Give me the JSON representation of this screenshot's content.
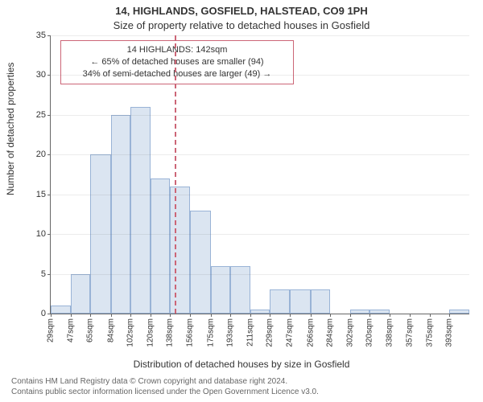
{
  "title_line1": "14, HIGHLANDS, GOSFIELD, HALSTEAD, CO9 1PH",
  "title_line2": "Size of property relative to detached houses in Gosfield",
  "ylabel": "Number of detached properties",
  "xlabel": "Distribution of detached houses by size in Gosfield",
  "chart": {
    "type": "histogram",
    "ylim": [
      0,
      35
    ],
    "ytick_step": 5,
    "bin_starts": [
      29,
      47,
      65,
      84,
      102,
      120,
      138,
      156,
      175,
      193,
      211,
      229,
      247,
      266,
      284,
      302,
      320,
      338,
      357,
      375,
      393
    ],
    "x_range": [
      29,
      411
    ],
    "values": [
      1,
      5,
      20,
      25,
      26,
      17,
      16,
      13,
      6,
      6,
      0.5,
      3,
      3,
      3,
      0,
      0.5,
      0.5,
      0,
      0,
      0,
      0.5
    ],
    "bar_fill": "#dbe5f1",
    "bar_border": "#99b3d6",
    "grid_color": "#666666",
    "background": "#ffffff",
    "xtick_suffix": "sqm",
    "tick_fontsize": 11,
    "label_fontsize": 12,
    "title_fontsize": 13,
    "marker": {
      "x": 142,
      "color": "#cc6677",
      "dash": "4,4"
    },
    "annotation": {
      "border_color": "#cc6677",
      "lines": [
        "14 HIGHLANDS: 142sqm",
        "← 65% of detached houses are smaller (94)",
        "34% of semi-detached houses are larger (49) →"
      ]
    }
  },
  "credits": {
    "line1": "Contains HM Land Registry data © Crown copyright and database right 2024.",
    "line2": "Contains public sector information licensed under the Open Government Licence v3.0."
  }
}
